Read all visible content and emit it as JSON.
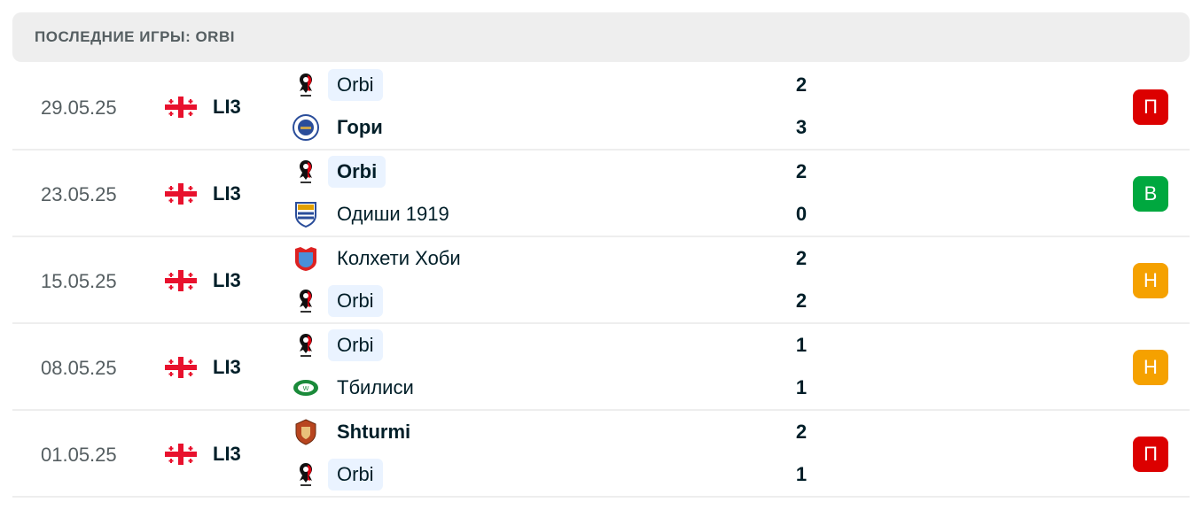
{
  "header": {
    "title": "ПОСЛЕДНИЕ ИГРЫ: ORBI"
  },
  "colors": {
    "loss": "#dc0000",
    "win": "#00a83f",
    "draw": "#f5a100",
    "highlight": "#eaf3ff"
  },
  "matches": [
    {
      "date": "29.05.25",
      "country_flag": "georgia-flag",
      "league": "LI3",
      "home": {
        "name": "Orbi",
        "score": "2",
        "highlight": true,
        "winner": false,
        "logo": "orbi"
      },
      "away": {
        "name": "Гори",
        "score": "3",
        "highlight": false,
        "winner": true,
        "logo": "gori"
      },
      "result": "П",
      "result_type": "loss"
    },
    {
      "date": "23.05.25",
      "country_flag": "georgia-flag",
      "league": "LI3",
      "home": {
        "name": "Orbi",
        "score": "2",
        "highlight": true,
        "winner": true,
        "logo": "orbi"
      },
      "away": {
        "name": "Одиши 1919",
        "score": "0",
        "highlight": false,
        "winner": false,
        "logo": "odishi"
      },
      "result": "В",
      "result_type": "win"
    },
    {
      "date": "15.05.25",
      "country_flag": "georgia-flag",
      "league": "LI3",
      "home": {
        "name": "Колхети Хоби",
        "score": "2",
        "highlight": false,
        "winner": false,
        "logo": "kolkheti"
      },
      "away": {
        "name": "Orbi",
        "score": "2",
        "highlight": true,
        "winner": false,
        "logo": "orbi"
      },
      "result": "Н",
      "result_type": "draw"
    },
    {
      "date": "08.05.25",
      "country_flag": "georgia-flag",
      "league": "LI3",
      "home": {
        "name": "Orbi",
        "score": "1",
        "highlight": true,
        "winner": false,
        "logo": "orbi"
      },
      "away": {
        "name": "Тбилиси",
        "score": "1",
        "highlight": false,
        "winner": false,
        "logo": "tbilisi"
      },
      "result": "Н",
      "result_type": "draw"
    },
    {
      "date": "01.05.25",
      "country_flag": "georgia-flag",
      "league": "LI3",
      "home": {
        "name": "Shturmi",
        "score": "2",
        "highlight": false,
        "winner": true,
        "logo": "shturmi"
      },
      "away": {
        "name": "Orbi",
        "score": "1",
        "highlight": true,
        "winner": false,
        "logo": "orbi"
      },
      "result": "П",
      "result_type": "loss"
    }
  ]
}
